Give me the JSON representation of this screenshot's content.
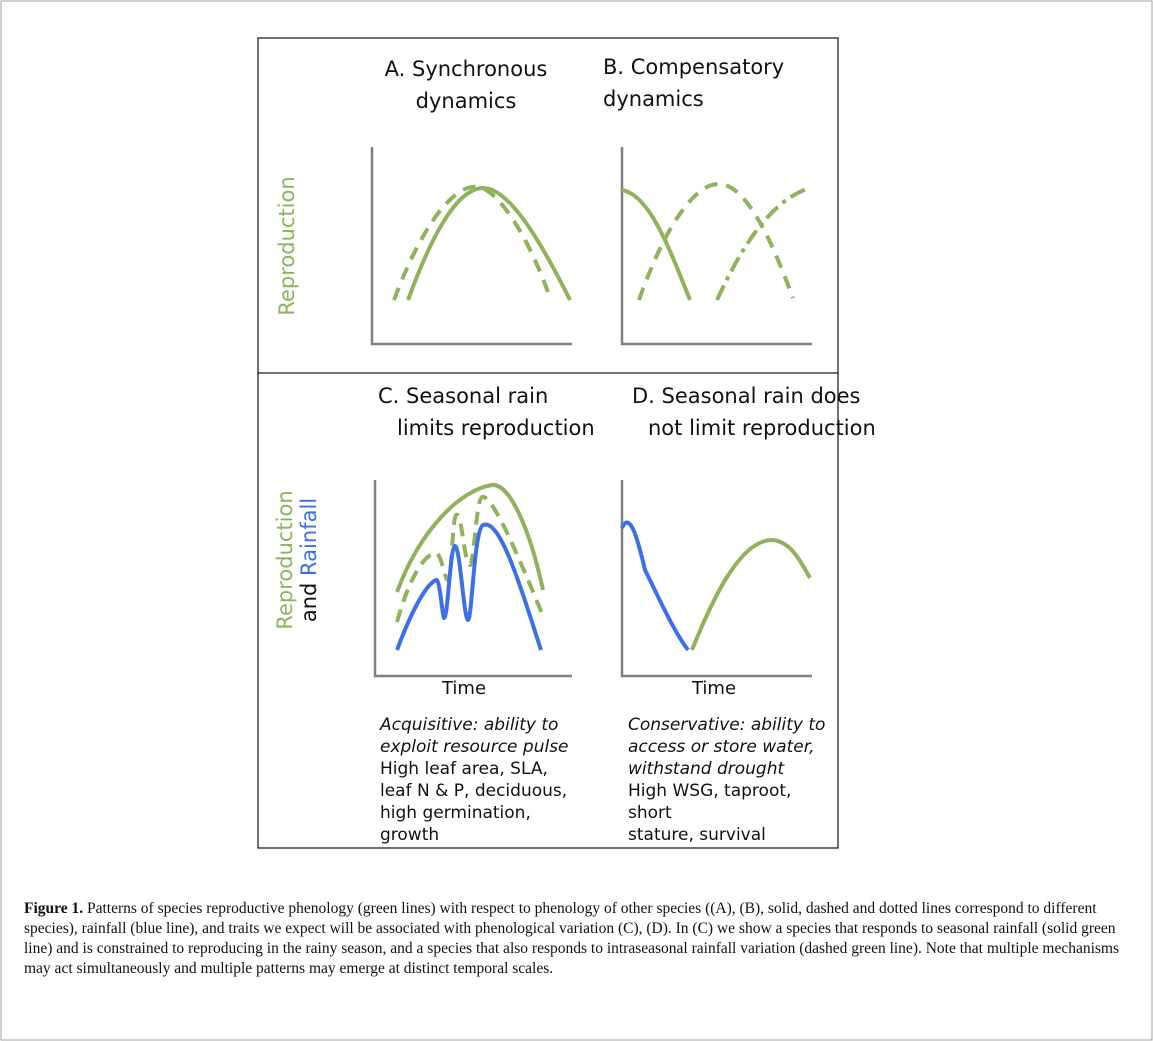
{
  "panels": {
    "A": {
      "title_line1": "A. Synchronous",
      "title_line2": "dynamics"
    },
    "B": {
      "title_line1": "B. Compensatory",
      "title_line2": "dynamics"
    },
    "C": {
      "title_line1": "C. Seasonal rain",
      "title_line2": "limits reproduction",
      "xlabel": "Time",
      "traits_italic": [
        "Acquisitive: ability to",
        "exploit resource pulse"
      ],
      "traits_regular": [
        "High leaf area, SLA,",
        "leaf N & P, deciduous,",
        "high germination,",
        "growth"
      ]
    },
    "D": {
      "title_line1": "D. Seasonal rain does",
      "title_line2": "not limit reproduction",
      "xlabel": "Time",
      "traits_italic": [
        "Conservative: ability to",
        "access or store water,",
        "withstand drought"
      ],
      "traits_regular": [
        "High WSG, taproot, short",
        "stature, survival"
      ]
    }
  },
  "ylabels": {
    "top": "Reproduction",
    "bottom_line1": "Reproduction",
    "bottom_line2_prefix": "and ",
    "bottom_line2_word": "Rainfall"
  },
  "colors": {
    "reproduction_green": "#8fb35a",
    "rainfall_blue": "#3d6fe6",
    "axis_gray": "#808080",
    "frame": "#222222"
  },
  "caption": {
    "label": "Figure 1.",
    "text": "Patterns of species reproductive phenology (green lines) with respect to phenology of other species ((A), (B), solid, dashed and dotted lines correspond to different species), rainfall (blue line), and traits we expect will be associated with phenological variation (C), (D). In (C) we show a species that responds to seasonal rainfall (solid green line) and is constrained to reproducing in the rainy season, and a species that also responds to intraseasonal rainfall variation (dashed green line). Note that multiple mechanisms may act simultaneously and multiple patterns may emerge at distinct temporal scales."
  }
}
